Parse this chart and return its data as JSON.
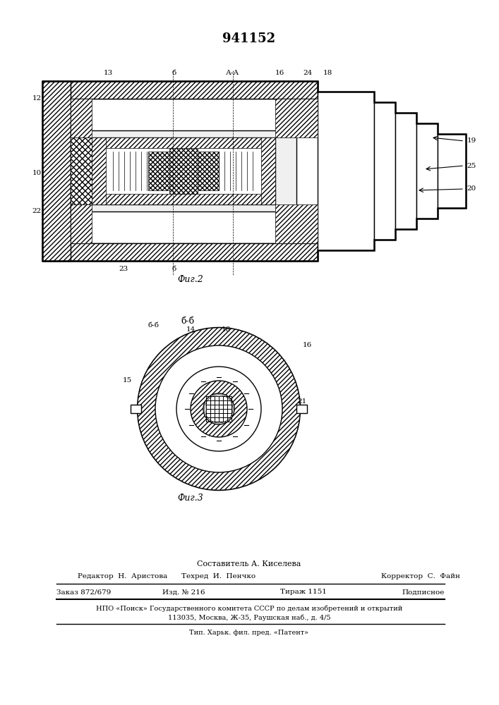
{
  "patent_number": "941152",
  "bg_color": "#ffffff",
  "line_color": "#000000",
  "fig2_caption": "Фиг.2",
  "fig3_caption": "Фиг.3",
  "section_label_fig2": "А-А",
  "section_label_fig3": "Б-Б",
  "footer_line1": "Составитель А. Киселева",
  "footer_line2_col1": "Редактор  Н.  Аристова",
  "footer_line2_col2": "Техред  И.  Пенчко",
  "footer_line2_col3": "Корректор  С.  Файн",
  "footer_line3_col1": "Заказ 872/679",
  "footer_line3_col2": "Изд. № 216",
  "footer_line3_col3": "Тираж 1151",
  "footer_line3_col4": "Подписное",
  "footer_line4": "НПО «Поиск» Государственного комитета СССР по делам изобретений и открытий",
  "footer_line5": "113035, Москва, Ж-35, Раушская наб., д. 4/5",
  "footer_line6": "Тип. Харьк. фил. пред. «Патент»",
  "hatch_color": "#000000",
  "gray_light": "#d0d0d0",
  "gray_medium": "#a0a0a0",
  "gray_dark": "#606060"
}
